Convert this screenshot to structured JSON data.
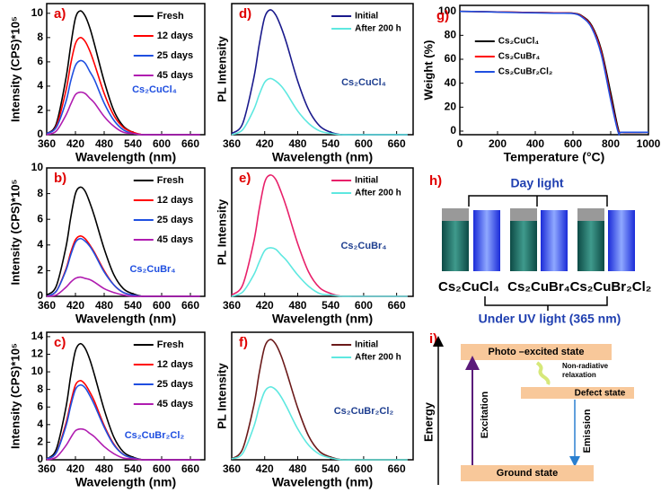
{
  "chart_data": [
    {
      "type": "line",
      "label": "a)",
      "annotation": "Cs₂CuCl₄",
      "xlabel": "Wavelength (nm)",
      "ylabel": "Intensity (CPS)*10⁵",
      "x": [
        360,
        380,
        400,
        410,
        420,
        430,
        440,
        450,
        460,
        480,
        500,
        520,
        540,
        560,
        580,
        600,
        640,
        680
      ],
      "xlim": [
        360,
        690
      ],
      "xticks": [
        360,
        420,
        480,
        540,
        600,
        660
      ],
      "ylim": [
        0,
        10.8
      ],
      "yticks": [
        0,
        2,
        4,
        6,
        8,
        10
      ],
      "series": [
        {
          "name": "Fresh",
          "color": "#000000",
          "values": [
            0.1,
            0.9,
            4.6,
            7.3,
            9.6,
            10.2,
            9.8,
            8.8,
            7.4,
            4.4,
            2.0,
            0.7,
            0.2,
            0,
            0,
            0,
            0,
            0
          ]
        },
        {
          "name": "12 days",
          "color": "#ff0000",
          "values": [
            0.1,
            0.7,
            3.6,
            5.8,
            7.5,
            8.0,
            7.7,
            6.9,
            5.8,
            3.4,
            1.6,
            0.6,
            0.2,
            0,
            0,
            0,
            0,
            0
          ]
        },
        {
          "name": "25 days",
          "color": "#1f4fe0",
          "values": [
            0.1,
            0.6,
            2.7,
            4.4,
            5.7,
            6.1,
            5.9,
            5.2,
            4.5,
            2.6,
            1.2,
            0.4,
            0.1,
            0,
            0,
            0,
            0,
            0
          ]
        },
        {
          "name": "45 days",
          "color": "#b01cb0",
          "values": [
            0,
            0.3,
            1.6,
            2.5,
            3.3,
            3.5,
            3.4,
            3.0,
            2.6,
            1.5,
            0.7,
            0.2,
            0.1,
            0,
            0,
            0,
            0,
            0
          ]
        }
      ]
    },
    {
      "type": "line",
      "label": "d)",
      "annotation": "Cs₂CuCl₄",
      "xlabel": "Wavelength (nm)",
      "ylabel": "PL Intensity",
      "x": [
        360,
        380,
        400,
        410,
        420,
        430,
        440,
        450,
        460,
        480,
        500,
        520,
        540,
        560,
        580,
        600,
        640,
        680
      ],
      "xlim": [
        360,
        690
      ],
      "xticks": [
        360,
        420,
        480,
        540,
        600,
        660
      ],
      "ylim": [
        0,
        10.5
      ],
      "series": [
        {
          "name": "Initial",
          "color": "#1a1a8c",
          "values": [
            0.1,
            0.9,
            4.5,
            7.2,
            9.4,
            10,
            9.6,
            8.6,
            7.3,
            4.3,
            2.0,
            0.7,
            0.2,
            0,
            0,
            0,
            0,
            0
          ]
        },
        {
          "name": "After 200 h",
          "color": "#5ee8e0",
          "values": [
            0,
            0.4,
            2.0,
            3.2,
            4.2,
            4.5,
            4.3,
            3.9,
            3.3,
            1.9,
            0.9,
            0.3,
            0.1,
            0,
            0,
            0,
            0,
            0
          ]
        }
      ]
    },
    {
      "type": "line",
      "label": "g)",
      "xlabel": "Temperature (°C)",
      "ylabel": "Weight (%)",
      "x": [
        0,
        100,
        200,
        300,
        400,
        500,
        600,
        650,
        700,
        750,
        800,
        840,
        860,
        1000
      ],
      "xlim": [
        0,
        1000
      ],
      "xticks": [
        0,
        200,
        400,
        600,
        800,
        1000
      ],
      "ylim": [
        -3,
        105
      ],
      "yticks": [
        0,
        20,
        40,
        60,
        80,
        100
      ],
      "series": [
        {
          "name": "Cs₂CuCl₄",
          "color": "#000000",
          "values": [
            100,
            99.8,
            99.5,
            99.2,
            99,
            98.8,
            98.5,
            96,
            88,
            68,
            32,
            2,
            -1,
            -1
          ]
        },
        {
          "name": "Cs₂CuBr₄",
          "color": "#ff0000",
          "values": [
            100,
            99.8,
            99.5,
            99.2,
            99,
            98.8,
            98.4,
            95.5,
            87,
            66,
            28,
            0,
            -1,
            -1
          ]
        },
        {
          "name": "Cs₂CuBr₂Cl₂",
          "color": "#1f4fe0",
          "values": [
            100,
            99.8,
            99.4,
            99,
            98.8,
            98.5,
            98.2,
            95,
            86,
            64,
            26,
            -1,
            -1,
            -1
          ]
        }
      ]
    },
    {
      "type": "line",
      "label": "b)",
      "annotation": "Cs₂CuBr₄",
      "xlabel": "Wavelength (nm)",
      "ylabel": "Intensity (CPS)*10⁵",
      "x": [
        360,
        380,
        400,
        410,
        420,
        430,
        440,
        450,
        460,
        480,
        500,
        520,
        540,
        560,
        580,
        600,
        640,
        680
      ],
      "xlim": [
        360,
        690
      ],
      "xticks": [
        360,
        420,
        480,
        540,
        600,
        660
      ],
      "ylim": [
        0,
        10
      ],
      "yticks": [
        0,
        2,
        4,
        6,
        8,
        10
      ],
      "series": [
        {
          "name": "Fresh",
          "color": "#000000",
          "values": [
            0.1,
            0.8,
            3.8,
            6.1,
            8.0,
            8.5,
            8.2,
            7.3,
            6.2,
            3.7,
            1.7,
            0.6,
            0.2,
            0,
            0,
            0,
            0,
            0
          ]
        },
        {
          "name": "12 days",
          "color": "#ff0000",
          "values": [
            0,
            0.4,
            2.1,
            3.4,
            4.4,
            4.7,
            4.5,
            4.0,
            3.4,
            2.0,
            0.9,
            0.3,
            0.1,
            0,
            0,
            0,
            0,
            0
          ]
        },
        {
          "name": "25 days",
          "color": "#1f4fe0",
          "values": [
            0,
            0.4,
            2.0,
            3.2,
            4.2,
            4.5,
            4.3,
            3.9,
            3.3,
            1.9,
            0.9,
            0.3,
            0.1,
            0,
            0,
            0,
            0,
            0
          ]
        },
        {
          "name": "45 days",
          "color": "#b01cb0",
          "values": [
            0,
            0.1,
            0.7,
            1.1,
            1.4,
            1.5,
            1.4,
            1.3,
            1.1,
            0.6,
            0.3,
            0.1,
            0,
            0,
            0,
            0,
            0,
            0
          ]
        }
      ]
    },
    {
      "type": "line",
      "label": "e)",
      "annotation": "Cs₂CuBr₄",
      "xlabel": "Wavelength (nm)",
      "ylabel": "PL Intensity",
      "x": [
        360,
        380,
        400,
        410,
        420,
        430,
        440,
        450,
        460,
        480,
        500,
        520,
        540,
        560,
        580,
        600,
        640,
        680
      ],
      "xlim": [
        360,
        690
      ],
      "xticks": [
        360,
        420,
        480,
        540,
        600,
        660
      ],
      "ylim": [
        0,
        9
      ],
      "series": [
        {
          "name": "Initial",
          "color": "#e8206a",
          "values": [
            0.1,
            0.8,
            3.8,
            6.1,
            8.0,
            8.5,
            8.2,
            7.3,
            6.2,
            3.7,
            1.7,
            0.6,
            0.2,
            0,
            0,
            0,
            0,
            0
          ]
        },
        {
          "name": "After 200 h",
          "color": "#5ee8e0",
          "values": [
            0,
            0.3,
            1.5,
            2.4,
            3.2,
            3.4,
            3.3,
            2.9,
            2.5,
            1.5,
            0.7,
            0.2,
            0.1,
            0,
            0,
            0,
            0,
            0
          ]
        }
      ]
    },
    {
      "type": "line",
      "label": "c)",
      "annotation": "Cs₂CuBr₂Cl₂",
      "xlabel": "Wavelength (nm)",
      "ylabel": "Intensity (CPS)*10⁵",
      "x": [
        360,
        380,
        400,
        410,
        420,
        430,
        440,
        450,
        460,
        480,
        500,
        520,
        540,
        560,
        580,
        600,
        640,
        680
      ],
      "xlim": [
        360,
        690
      ],
      "xticks": [
        360,
        420,
        480,
        540,
        600,
        660
      ],
      "ylim": [
        0,
        14.5
      ],
      "yticks": [
        0,
        2,
        4,
        6,
        8,
        10,
        12,
        14
      ],
      "series": [
        {
          "name": "Fresh",
          "color": "#000000",
          "values": [
            0.1,
            1.2,
            5.9,
            9.5,
            12.4,
            13.2,
            12.7,
            11.4,
            9.6,
            5.7,
            2.6,
            0.9,
            0.3,
            0,
            0,
            0,
            0,
            0
          ]
        },
        {
          "name": "12 days",
          "color": "#ff0000",
          "values": [
            0.1,
            0.8,
            4.1,
            6.5,
            8.5,
            9.0,
            8.6,
            7.7,
            6.6,
            3.9,
            1.8,
            0.6,
            0.2,
            0,
            0,
            0,
            0,
            0
          ]
        },
        {
          "name": "25 days",
          "color": "#1f4fe0",
          "values": [
            0.1,
            0.8,
            3.8,
            6.1,
            8.0,
            8.5,
            8.2,
            7.3,
            6.2,
            3.7,
            1.7,
            0.6,
            0.2,
            0,
            0,
            0,
            0,
            0
          ]
        },
        {
          "name": "45 days",
          "color": "#b01cb0",
          "values": [
            0,
            0.3,
            1.6,
            2.5,
            3.3,
            3.5,
            3.4,
            3.0,
            2.6,
            1.5,
            0.7,
            0.2,
            0.1,
            0,
            0,
            0,
            0,
            0
          ]
        }
      ]
    },
    {
      "type": "line",
      "label": "f)",
      "annotation": "Cs₂CuBr₂Cl₂",
      "xlabel": "Wavelength (nm)",
      "ylabel": "PL Intensity",
      "x": [
        360,
        380,
        400,
        410,
        420,
        430,
        440,
        450,
        460,
        480,
        500,
        520,
        540,
        560,
        580,
        600,
        640,
        680
      ],
      "xlim": [
        360,
        690
      ],
      "xticks": [
        360,
        420,
        480,
        540,
        600,
        660
      ],
      "ylim": [
        0,
        14
      ],
      "series": [
        {
          "name": "Initial",
          "color": "#6b1a1a",
          "values": [
            0.1,
            1.2,
            5.9,
            9.5,
            12.4,
            13.2,
            12.7,
            11.4,
            9.6,
            5.7,
            2.6,
            0.9,
            0.3,
            0,
            0,
            0,
            0,
            0
          ]
        },
        {
          "name": "After 200 h",
          "color": "#5ee8e0",
          "values": [
            0.1,
            0.7,
            3.6,
            5.8,
            7.5,
            8.0,
            7.7,
            6.9,
            5.8,
            3.4,
            1.6,
            0.6,
            0.2,
            0,
            0,
            0,
            0,
            0
          ]
        }
      ]
    }
  ],
  "photo": {
    "label": "h)",
    "top": "Day light",
    "samples": [
      "Cs₂CuCl₄",
      "Cs₂CuBr₄",
      "Cs₂CuBr₂Cl₂"
    ],
    "bottom": "Under UV light (365 nm)"
  },
  "diagram": {
    "label": "i)",
    "axis": "Energy",
    "excited": "Photo –excited state",
    "relax": [
      "Non-radiative",
      "relaxation"
    ],
    "defect": "Defect state",
    "excitation": "Excitation",
    "emission": "Emission",
    "ground": "Ground state"
  }
}
